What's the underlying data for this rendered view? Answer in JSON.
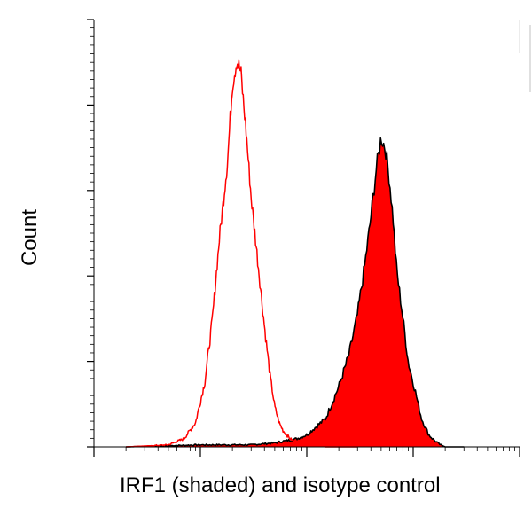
{
  "chart_data": {
    "type": "area",
    "title": "",
    "xlabel": "IRF1 (shaded) and isotype control",
    "ylabel": "Count",
    "x_scale": "log",
    "xlim": [
      0.1,
      1000
    ],
    "ylim": [
      0,
      1
    ],
    "grid": false,
    "legend": "none",
    "series": [
      {
        "style": "filled",
        "color": "#ff0000",
        "outline_color": "#000000",
        "x": [
          0.2,
          1,
          3,
          5,
          8,
          10,
          15,
          20,
          25,
          30,
          35,
          40,
          45,
          50,
          55,
          60,
          65,
          70,
          80,
          90,
          100,
          120,
          140,
          160,
          180,
          200,
          300
        ],
        "y": [
          0.0,
          0.005,
          0.005,
          0.01,
          0.02,
          0.03,
          0.07,
          0.15,
          0.23,
          0.33,
          0.45,
          0.57,
          0.69,
          0.77,
          0.74,
          0.66,
          0.56,
          0.44,
          0.32,
          0.21,
          0.16,
          0.07,
          0.03,
          0.015,
          0.005,
          0.0,
          0.0
        ]
      },
      {
        "style": "line",
        "color": "#ff0000",
        "x": [
          0.2,
          0.5,
          0.7,
          0.9,
          1.1,
          1.3,
          1.5,
          1.8,
          2.0,
          2.2,
          2.4,
          2.7,
          3.0,
          3.5,
          4.0,
          4.5,
          5.0,
          5.5,
          6.0,
          7.0,
          8.0,
          10,
          15,
          30
        ],
        "y": [
          0.0,
          0.005,
          0.02,
          0.06,
          0.16,
          0.32,
          0.51,
          0.71,
          0.9,
          0.96,
          0.93,
          0.78,
          0.62,
          0.45,
          0.3,
          0.18,
          0.1,
          0.06,
          0.04,
          0.02,
          0.01,
          0.005,
          0.0,
          0.0
        ]
      }
    ]
  }
}
